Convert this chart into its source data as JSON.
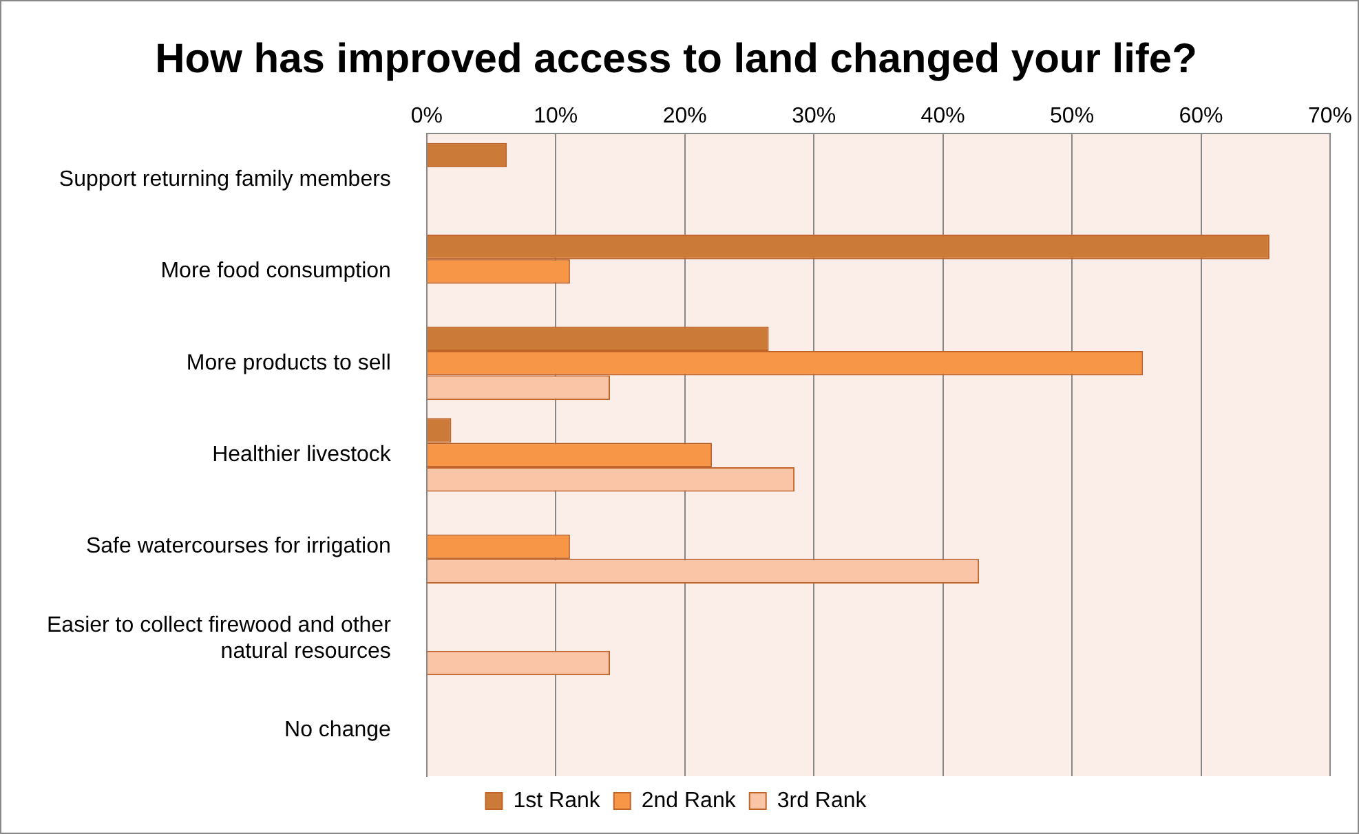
{
  "chart_data": {
    "type": "bar",
    "orientation": "horizontal",
    "title": "How has improved access to land changed your life?",
    "categories": [
      "Support returning family members",
      "More food consumption",
      "More products to sell",
      "Healthier livestock",
      "Safe watercourses for irrigation",
      "Easier to collect firewood and other natural resources",
      "No change"
    ],
    "series": [
      {
        "name": "1st Rank",
        "color": "#cc7a38",
        "values": [
          6.2,
          65.3,
          26.5,
          1.9,
          null,
          null,
          null
        ]
      },
      {
        "name": "2nd Rank",
        "color": "#f79646",
        "values": [
          null,
          11.1,
          55.5,
          22.1,
          11.1,
          null,
          null
        ]
      },
      {
        "name": "3rd Rank",
        "color": "#fac4a6",
        "values": [
          null,
          null,
          14.2,
          28.5,
          42.8,
          14.2,
          null
        ]
      }
    ],
    "xlim": [
      0,
      70
    ],
    "xticks": [
      {
        "value": 0,
        "label": "0%"
      },
      {
        "value": 10,
        "label": "10%"
      },
      {
        "value": 20,
        "label": "20%"
      },
      {
        "value": 30,
        "label": "30%"
      },
      {
        "value": 40,
        "label": "40%"
      },
      {
        "value": 50,
        "label": "50%"
      },
      {
        "value": 60,
        "label": "60%"
      },
      {
        "value": 70,
        "label": "70%"
      }
    ],
    "grid": "x",
    "legend": "bottom"
  }
}
